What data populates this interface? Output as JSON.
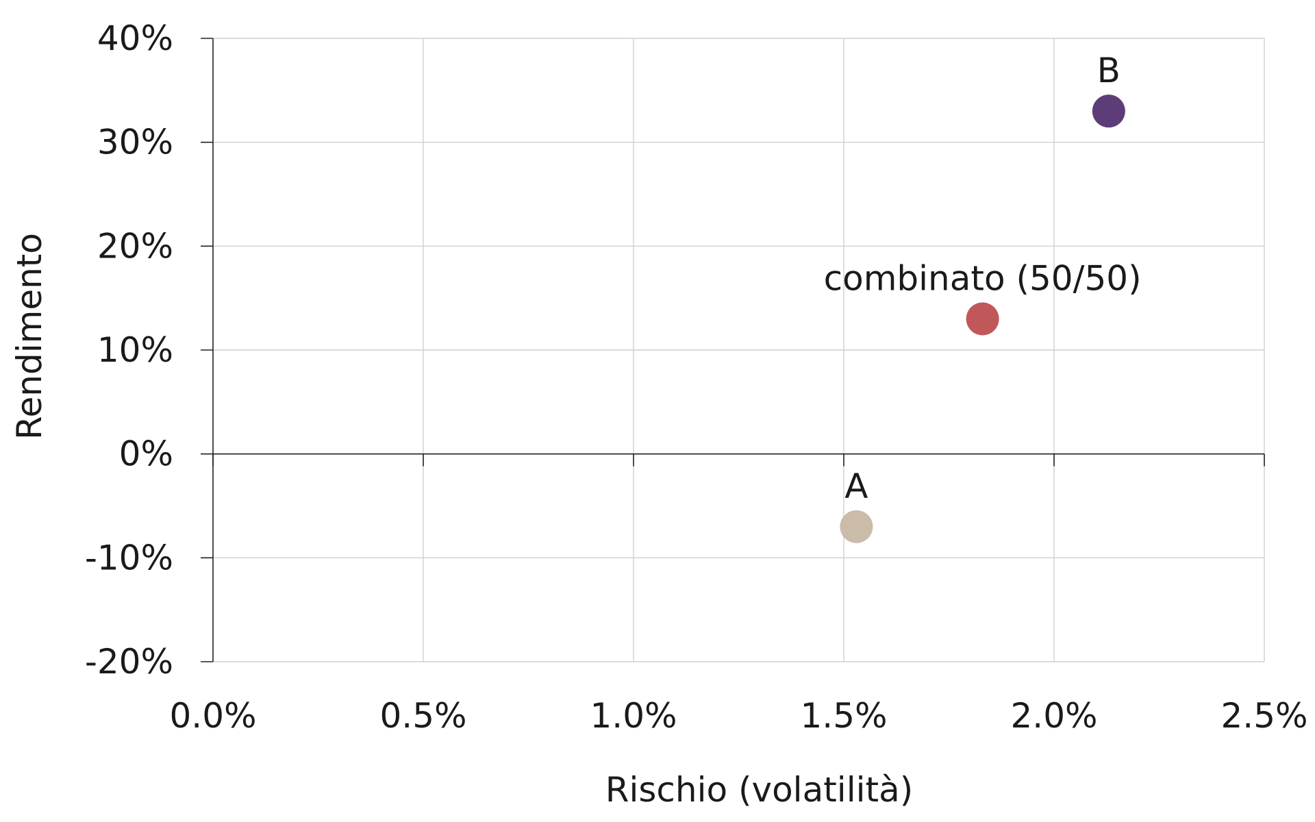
{
  "chart_data": {
    "type": "scatter",
    "title": "",
    "xlabel": "Rischio (volatilità)",
    "ylabel": "Rendimento",
    "xlim": [
      0,
      2.5
    ],
    "ylim": [
      -20,
      40
    ],
    "x_ticks": [
      0,
      0.5,
      1.0,
      1.5,
      2.0,
      2.5
    ],
    "x_tick_labels": [
      "0.0%",
      "0.5%",
      "1.0%",
      "1.5%",
      "2.0%",
      "2.5%"
    ],
    "y_ticks": [
      -20,
      -10,
      0,
      10,
      20,
      30,
      40
    ],
    "y_tick_labels": [
      "-20%",
      "-10%",
      "0%",
      "10%",
      "20%",
      "30%",
      "40%"
    ],
    "grid": true,
    "legend": "none",
    "points": [
      {
        "label": "A",
        "x": 1.53,
        "y": -7,
        "color": "#cbbba9"
      },
      {
        "label": "combinato (50/50)",
        "x": 1.83,
        "y": 13,
        "color": "#c0585a"
      },
      {
        "label": "B",
        "x": 2.13,
        "y": 33,
        "color": "#5c3d78"
      }
    ]
  }
}
